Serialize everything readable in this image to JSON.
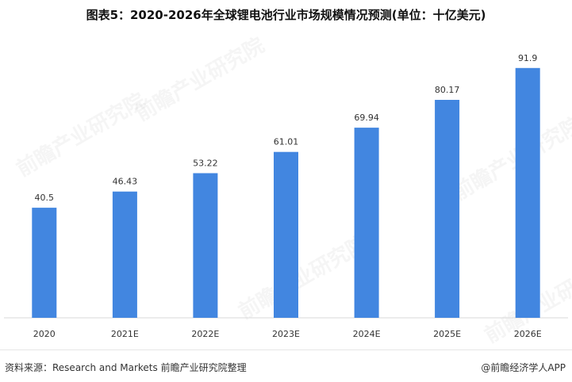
{
  "title": "图表5：2020-2026年全球锂电池行业市场规模情况预测(单位：十亿美元)",
  "watermark_text": "前瞻产业研究院",
  "source": "资料来源：Research and Markets 前瞻产业研究院整理",
  "brand": "@前瞻经济学人APP",
  "colors": {
    "bar": "#4286e0",
    "axis": "#d9d9d9",
    "label": "#333333"
  },
  "chart_data": {
    "type": "bar",
    "categories": [
      "2020",
      "2021E",
      "2022E",
      "2023E",
      "2024E",
      "2025E",
      "2026E"
    ],
    "values": [
      40.5,
      46.43,
      53.22,
      61.01,
      69.94,
      80.17,
      91.9
    ],
    "value_labels": [
      "40.5",
      "46.43",
      "53.22",
      "61.01",
      "69.94",
      "80.17",
      "91.9"
    ],
    "title": "图表5：2020-2026年全球锂电池行业市场规模情况预测(单位：十亿美元)",
    "xlabel": "",
    "ylabel": "",
    "ylim": [
      0,
      100
    ],
    "grid": false,
    "legend": "none"
  }
}
